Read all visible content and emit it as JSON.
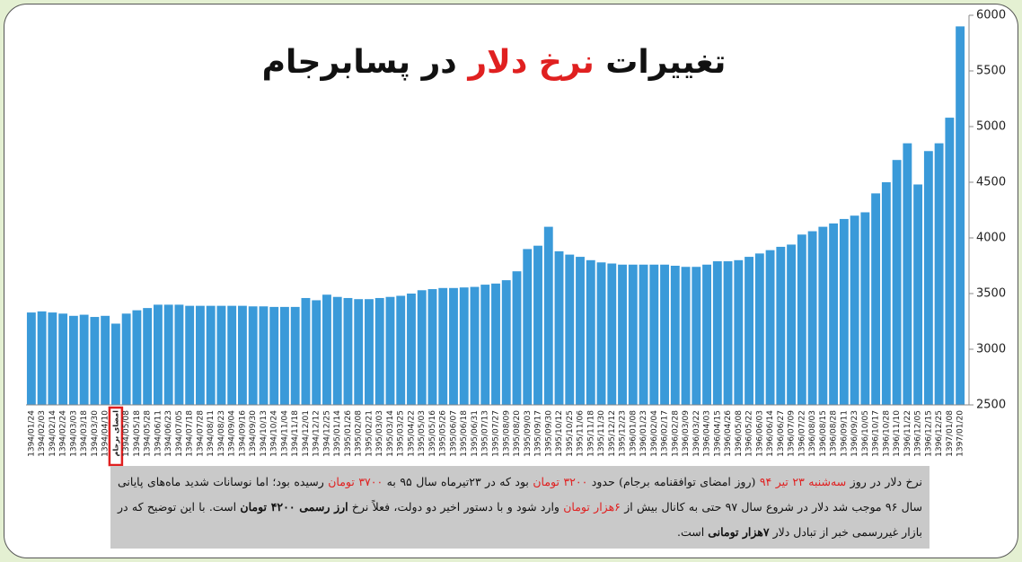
{
  "chart_data": {
    "type": "bar",
    "title_parts": [
      {
        "text": "تغییرات ",
        "color": "#111111"
      },
      {
        "text": "نرخ دلار",
        "color": "#e02020"
      },
      {
        "text": " در پسابرجام",
        "color": "#111111"
      }
    ],
    "categories": [
      "1394/01/24",
      "1394/02/03",
      "1394/02/14",
      "1394/02/24",
      "1394/03/03",
      "1394/03/18",
      "1394/03/30",
      "1394/04/10",
      "امضای برجام",
      "1394/05/08",
      "1394/05/18",
      "1394/05/28",
      "1394/06/11",
      "1394/06/23",
      "1394/07/05",
      "1394/07/18",
      "1394/07/28",
      "1394/08/11",
      "1394/08/23",
      "1394/09/04",
      "1394/09/16",
      "1394/09/30",
      "1394/10/13",
      "1394/10/24",
      "1394/11/04",
      "1394/11/18",
      "1394/12/01",
      "1394/12/12",
      "1394/12/25",
      "1395/01/14",
      "1395/01/26",
      "1395/02/08",
      "1395/02/21",
      "1395/03/03",
      "1395/03/14",
      "1395/03/25",
      "1395/04/22",
      "1395/05/03",
      "1395/05/16",
      "1395/05/26",
      "1395/06/07",
      "1395/06/18",
      "1395/06/31",
      "1395/07/13",
      "1395/07/27",
      "1395/08/09",
      "1395/08/20",
      "1395/09/03",
      "1395/09/17",
      "1395/09/30",
      "1395/10/12",
      "1395/10/25",
      "1395/11/06",
      "1395/11/18",
      "1395/11/30",
      "1395/12/12",
      "1395/12/23",
      "1396/01/08",
      "1396/01/23",
      "1396/02/04",
      "1396/02/17",
      "1396/02/28",
      "1396/03/09",
      "1396/03/22",
      "1396/04/03",
      "1396/04/15",
      "1396/04/26",
      "1396/05/08",
      "1396/05/22",
      "1396/06/03",
      "1396/06/14",
      "1396/06/27",
      "1396/07/09",
      "1396/07/22",
      "1396/08/03",
      "1396/08/15",
      "1396/08/28",
      "1396/09/11",
      "1396/09/23",
      "1396/10/05",
      "1396/10/17",
      "1396/10/28",
      "1396/11/10",
      "1396/11/22",
      "1396/12/05",
      "1396/12/15",
      "1396/12/25",
      "1397/01/08",
      "1397/01/20"
    ],
    "values": [
      3330,
      3340,
      3330,
      3320,
      3300,
      3310,
      3290,
      3300,
      3230,
      3320,
      3350,
      3370,
      3400,
      3400,
      3400,
      3390,
      3390,
      3390,
      3390,
      3390,
      3390,
      3385,
      3385,
      3380,
      3380,
      3380,
      3460,
      3440,
      3490,
      3470,
      3460,
      3450,
      3450,
      3460,
      3470,
      3480,
      3500,
      3530,
      3540,
      3550,
      3550,
      3555,
      3560,
      3580,
      3590,
      3620,
      3700,
      3900,
      3930,
      4100,
      3880,
      3850,
      3830,
      3800,
      3780,
      3770,
      3760,
      3760,
      3760,
      3760,
      3760,
      3750,
      3740,
      3740,
      3760,
      3790,
      3790,
      3800,
      3830,
      3860,
      3890,
      3920,
      3940,
      4030,
      4060,
      4100,
      4130,
      4170,
      4200,
      4230,
      4400,
      4500,
      4700,
      4850,
      4480,
      4780,
      4850,
      5080,
      5900
    ],
    "color": "#3a9ad9",
    "highlight": {
      "category": 8,
      "color": "#e02020"
    },
    "ylim": [
      2500,
      6000
    ],
    "yticks": [
      2500,
      3000,
      3500,
      4000,
      4500,
      5000,
      5500,
      6000
    ],
    "note": [
      {
        "text": "نرخ دلار در روز ",
        "color": "#111111",
        "bold": false
      },
      {
        "text": "سه‌شنبه ۲۳ تیر ۹۴",
        "color": "#e02020",
        "bold": false
      },
      {
        "text": " (روز امضای توافقنامه برجام) حدود ",
        "color": "#111111",
        "bold": false
      },
      {
        "text": "۳۲۰۰ تومان",
        "color": "#e02020",
        "bold": false
      },
      {
        "text": " بود که در ۲۳تیرماه سال ۹۵ به ",
        "color": "#111111",
        "bold": false
      },
      {
        "text": "۳۷۰۰ تومان",
        "color": "#e02020",
        "bold": false
      },
      {
        "text": " رسیده بود؛ اما نوسانات شدید ماه‌های پایانی سال ۹۶ موجب شد دلار در شروع سال ۹۷ حتی به کانال بیش از ",
        "color": "#111111",
        "bold": false
      },
      {
        "text": "۶هزار تومان",
        "color": "#e02020",
        "bold": false
      },
      {
        "text": " وارد شود و با دستور اخیر دو دولت، فعلاً نرخ ",
        "color": "#111111",
        "bold": false
      },
      {
        "text": "ارز رسمی ۴۲۰۰ تومان",
        "color": "#111111",
        "bold": true
      },
      {
        "text": " است. با این توضیح که در بازار غیررسمی خبر از تبادل دلار ",
        "color": "#111111",
        "bold": false
      },
      {
        "text": "۷هزار تومانی",
        "color": "#111111",
        "bold": true
      },
      {
        "text": " است.",
        "color": "#111111",
        "bold": false
      }
    ]
  }
}
